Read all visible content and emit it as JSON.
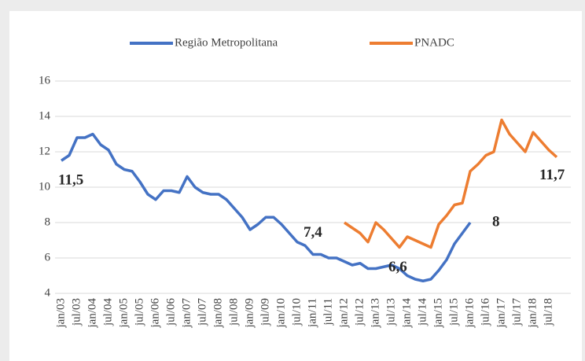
{
  "chart_data": {
    "type": "line",
    "categories": [
      "jan/03",
      null,
      "jul/03",
      null,
      "jan/04",
      null,
      "jul/04",
      null,
      "jan/05",
      null,
      "jul/05",
      null,
      "jan/06",
      null,
      "jul/06",
      null,
      "jan/07",
      null,
      "jul/07",
      null,
      "jan/08",
      null,
      "jul/08",
      null,
      "jan/09",
      null,
      "jul/09",
      null,
      "jan/10",
      null,
      "jul/10",
      null,
      "jan/11",
      null,
      "jul/11",
      null,
      "jan/12",
      null,
      "jul/12",
      null,
      "jan/13",
      null,
      "jul/13",
      null,
      "jan/14",
      null,
      "jul/14",
      null,
      "jan/15",
      null,
      "jul/15",
      null,
      "jan/16",
      null,
      "jul/16",
      null,
      "jan/17",
      null,
      "jul/17",
      null,
      "jan/18",
      null,
      "jul/18",
      null
    ],
    "series": [
      {
        "name": "Região Metropolitana",
        "color": "#4472c4",
        "values": [
          11.5,
          11.8,
          12.8,
          12.8,
          13.0,
          12.4,
          12.1,
          11.3,
          11.0,
          10.9,
          10.3,
          9.6,
          9.3,
          9.8,
          9.8,
          9.7,
          10.6,
          10.0,
          9.7,
          9.6,
          9.6,
          9.3,
          8.8,
          8.3,
          7.6,
          7.9,
          8.3,
          8.3,
          7.9,
          7.4,
          6.9,
          6.7,
          6.2,
          6.2,
          6.0,
          6.0,
          5.8,
          5.6,
          5.7,
          5.4,
          5.4,
          5.5,
          5.6,
          5.4,
          5.0,
          4.8,
          4.7,
          4.8,
          5.3,
          5.9,
          6.8,
          7.4,
          8,
          null,
          null,
          null,
          null,
          null,
          null,
          null,
          null,
          null,
          null,
          null
        ],
        "value_labels": [
          "11,5",
          null,
          null,
          null,
          null,
          null,
          null,
          null,
          null,
          null,
          null,
          null,
          null,
          null,
          null,
          null,
          null,
          null,
          null,
          null,
          null,
          null,
          null,
          null,
          null,
          null,
          null,
          null,
          null,
          "7,4",
          null,
          null,
          null,
          null,
          null,
          null,
          null,
          null,
          null,
          null,
          null,
          null,
          null,
          null,
          null,
          null,
          null,
          null,
          null,
          null,
          null,
          null,
          "8",
          null,
          null,
          null,
          null,
          null,
          null,
          null,
          null,
          null,
          null,
          null
        ]
      },
      {
        "name": "PNADC",
        "color": "#ed7d31",
        "values": [
          null,
          null,
          null,
          null,
          null,
          null,
          null,
          null,
          null,
          null,
          null,
          null,
          null,
          null,
          null,
          null,
          null,
          null,
          null,
          null,
          null,
          null,
          null,
          null,
          null,
          null,
          null,
          null,
          null,
          null,
          null,
          null,
          null,
          null,
          null,
          null,
          8.0,
          7.7,
          7.4,
          6.9,
          8.0,
          7.6,
          7.1,
          6.6,
          7.2,
          7.0,
          6.8,
          6.6,
          7.9,
          8.4,
          9.0,
          9.1,
          10.9,
          11.3,
          11.8,
          12.0,
          13.8,
          13.0,
          12.5,
          12.0,
          13.1,
          12.6,
          12.1,
          11.7
        ],
        "value_labels": [
          null,
          null,
          null,
          null,
          null,
          null,
          null,
          null,
          null,
          null,
          null,
          null,
          null,
          null,
          null,
          null,
          null,
          null,
          null,
          null,
          null,
          null,
          null,
          null,
          null,
          null,
          null,
          null,
          null,
          null,
          null,
          null,
          null,
          null,
          null,
          null,
          null,
          null,
          null,
          null,
          null,
          null,
          null,
          "6,6",
          null,
          null,
          null,
          null,
          null,
          null,
          null,
          null,
          null,
          null,
          null,
          null,
          null,
          null,
          null,
          null,
          null,
          null,
          null,
          "11,7"
        ]
      }
    ],
    "ylim": [
      4,
      16
    ],
    "yticks": [
      4,
      6,
      8,
      10,
      12,
      14,
      16
    ],
    "grid": true,
    "legend": "top"
  }
}
